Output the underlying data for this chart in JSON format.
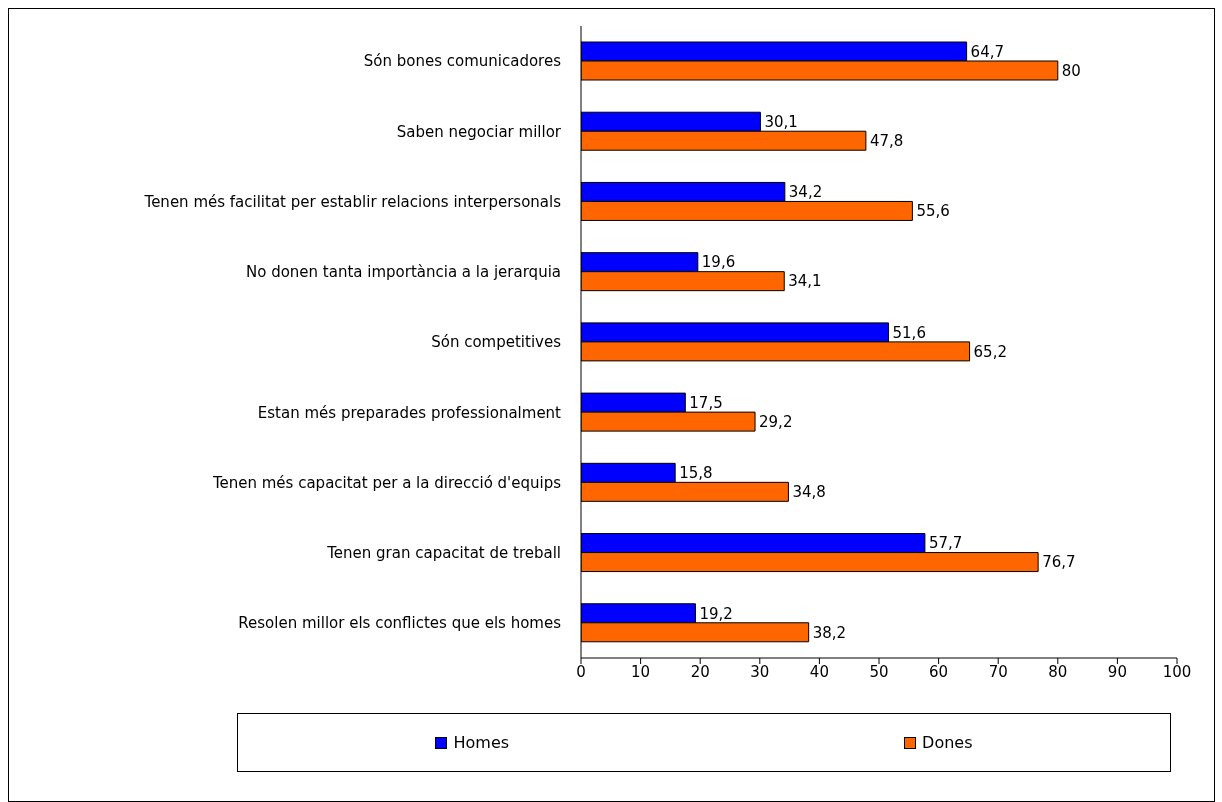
{
  "chart_data": {
    "type": "bar",
    "orientation": "horizontal",
    "categories": [
      "Són bones comunicadores",
      "Saben negociar millor",
      "Tenen més facilitat per establir relacions interpersonals",
      "No donen tanta importància a la jerarquia",
      "Són competitives",
      "Estan més preparades professionalment",
      "Tenen més capacitat per a la direcció d'equips",
      "Tenen gran capacitat de treball",
      "Resolen millor els conflictes que els homes"
    ],
    "series": [
      {
        "name": "Homes",
        "color": "#0000ff",
        "values": [
          64.7,
          30.1,
          34.2,
          19.6,
          51.6,
          17.5,
          15.8,
          57.7,
          19.2
        ],
        "value_labels": [
          "64,7",
          "30,1",
          "34,2",
          "19,6",
          "51,6",
          "17,5",
          "15,8",
          "57,7",
          "19,2"
        ]
      },
      {
        "name": "Dones",
        "color": "#ff6600",
        "values": [
          80,
          47.8,
          55.6,
          34.1,
          65.2,
          29.2,
          34.8,
          76.7,
          38.2
        ],
        "value_labels": [
          "80",
          "47,8",
          "55,6",
          "34,1",
          "65,2",
          "29,2",
          "34,8",
          "76,7",
          "38,2"
        ]
      }
    ],
    "xlim": [
      0,
      100
    ],
    "xticks": [
      0,
      10,
      20,
      30,
      40,
      50,
      60,
      70,
      80,
      90,
      100
    ],
    "grid": false,
    "legend": "bottom"
  }
}
